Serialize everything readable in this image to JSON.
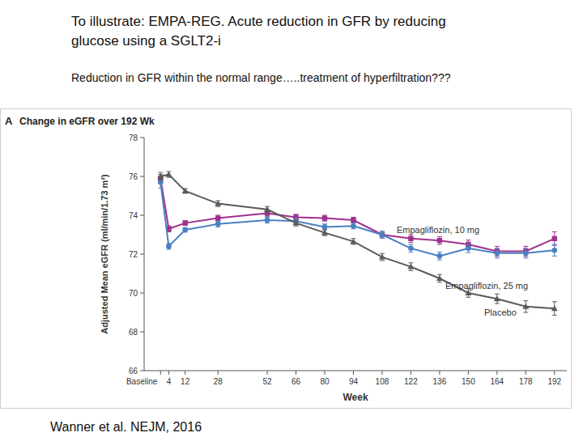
{
  "header": {
    "title_lines": [
      "To illustrate: EMPA-REG. Acute reduction in GFR by reducing",
      "glucose using a SGLT2-i"
    ],
    "subtitle": "Reduction in GFR within the normal range…..treatment of hyperfiltration???"
  },
  "chart_data": {
    "type": "line",
    "panel_label": "A",
    "title": "Change in eGFR over 192 Wk",
    "x_label": "Week",
    "y_label": "Adjusted Mean eGFR (ml/min/1.73 m²)",
    "x": [
      0,
      4,
      12,
      28,
      52,
      66,
      80,
      94,
      108,
      122,
      136,
      150,
      164,
      178,
      192
    ],
    "xlim": [
      -8,
      198
    ],
    "xticks": [
      {
        "value": 0,
        "label": "Baseline"
      },
      4,
      12,
      28,
      52,
      66,
      80,
      94,
      108,
      122,
      136,
      150,
      164,
      178,
      192
    ],
    "ylim": [
      66,
      78
    ],
    "yticks": [
      66,
      68,
      70,
      72,
      74,
      76,
      78
    ],
    "grid": false,
    "series": [
      {
        "name": "Empagliflozin, 10 mg",
        "color": "#a0308e",
        "marker": "square",
        "values": [
          75.9,
          73.3,
          73.6,
          73.85,
          74.1,
          73.9,
          73.85,
          73.75,
          73.0,
          72.8,
          72.7,
          72.5,
          72.15,
          72.15,
          72.8
        ],
        "errors": [
          0.2,
          0.15,
          0.12,
          0.15,
          0.15,
          0.15,
          0.15,
          0.15,
          0.18,
          0.2,
          0.2,
          0.22,
          0.25,
          0.25,
          0.35
        ]
      },
      {
        "name": "Empagliflozin, 25 mg",
        "color": "#4a80c0",
        "marker": "circle",
        "values": [
          75.7,
          72.4,
          73.25,
          73.55,
          73.75,
          73.7,
          73.4,
          73.45,
          73.0,
          72.3,
          71.9,
          72.3,
          72.05,
          72.05,
          72.2
        ],
        "errors": [
          0.3,
          0.15,
          0.12,
          0.15,
          0.15,
          0.15,
          0.15,
          0.15,
          0.18,
          0.2,
          0.2,
          0.22,
          0.25,
          0.25,
          0.3
        ]
      },
      {
        "name": "Placebo",
        "color": "#5a5a5a",
        "marker": "triangle",
        "values": [
          76.0,
          76.1,
          75.25,
          74.6,
          74.3,
          73.6,
          73.1,
          72.65,
          71.85,
          71.35,
          70.75,
          70.0,
          69.7,
          69.3,
          69.2
        ],
        "errors": [
          0.2,
          0.15,
          0.12,
          0.15,
          0.15,
          0.15,
          0.15,
          0.15,
          0.18,
          0.2,
          0.2,
          0.22,
          0.25,
          0.3,
          0.35
        ]
      }
    ]
  },
  "footer": {
    "citation": "Wanner et al. NEJM, 2016"
  }
}
